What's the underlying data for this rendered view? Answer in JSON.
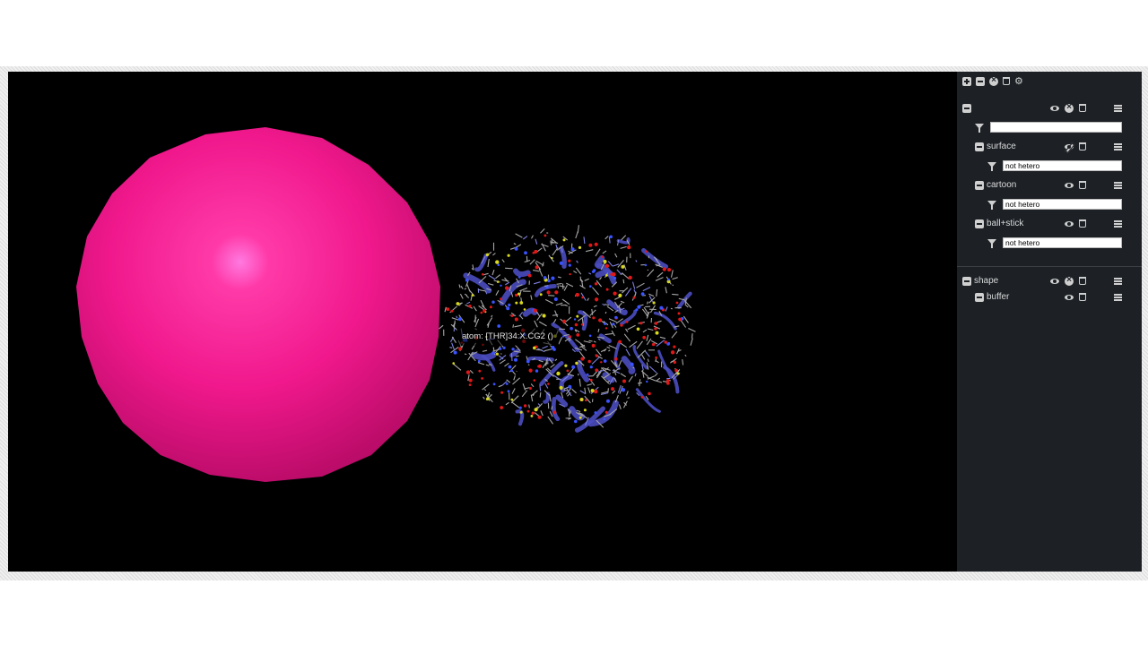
{
  "viewer": {
    "tooltip": "atom: [THR]34:X.CG2 ()",
    "sphere_color": "#f0188c",
    "protein_color": "#4a4cc0"
  },
  "panel": {
    "toolbar_icons": [
      "add-icon",
      "remove-icon",
      "close-circle-icon",
      "trash-icon",
      "cogs-icon"
    ],
    "structure": {
      "filter_value": "",
      "representations": [
        {
          "label": "surface",
          "visible": false,
          "filter": "not hetero"
        },
        {
          "label": "cartoon",
          "visible": true,
          "filter": "not hetero"
        },
        {
          "label": "ball+stick",
          "visible": true,
          "filter": "not hetero"
        }
      ]
    },
    "shape": {
      "label": "shape",
      "children": [
        {
          "label": "buffer"
        }
      ]
    }
  }
}
